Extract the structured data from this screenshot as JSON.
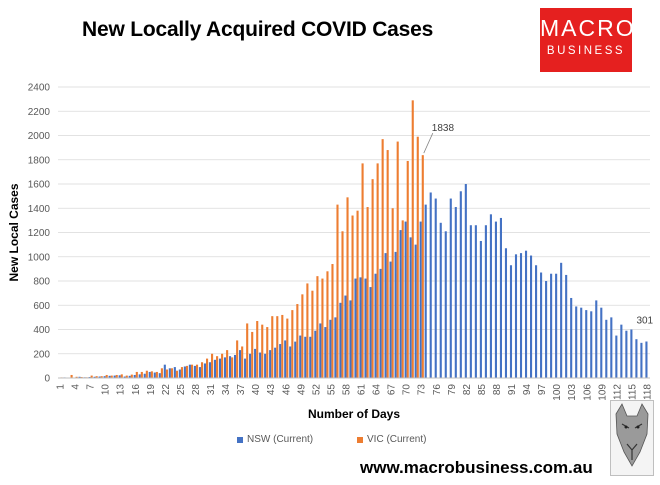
{
  "header": {
    "title": "New Locally Acquired COVID Cases",
    "logo_line1": "MACRO",
    "logo_line2": "BUSINESS"
  },
  "footer": {
    "url": "www.macrobusiness.com.au"
  },
  "colors": {
    "nsw": "#4472c4",
    "vic": "#ed7d31",
    "logo": "#e5201f"
  },
  "chart_data": {
    "type": "bar",
    "title": "New Locally Acquired COVID Cases",
    "xlabel": "Number of Days",
    "ylabel": "New Local Cases",
    "ylim": [
      0,
      2400
    ],
    "yticks": [
      0,
      200,
      400,
      600,
      800,
      1000,
      1200,
      1400,
      1600,
      1800,
      2000,
      2200,
      2400
    ],
    "xtick_labels": [
      "1",
      "4",
      "7",
      "10",
      "13",
      "16",
      "19",
      "22",
      "25",
      "28",
      "31",
      "34",
      "37",
      "40",
      "43",
      "46",
      "49",
      "52",
      "55",
      "58",
      "61",
      "64",
      "67",
      "70",
      "73",
      "76",
      "79",
      "82",
      "85",
      "88",
      "91",
      "94",
      "97",
      "100",
      "103",
      "106",
      "109",
      "112",
      "115",
      "118"
    ],
    "categories_start": 1,
    "categories_end": 118,
    "series": [
      {
        "name": "NSW (Current)",
        "values": [
          3,
          5,
          2,
          4,
          10,
          6,
          8,
          10,
          12,
          15,
          18,
          20,
          22,
          12,
          18,
          25,
          30,
          35,
          50,
          45,
          40,
          110,
          80,
          90,
          70,
          95,
          110,
          100,
          90,
          120,
          130,
          150,
          160,
          170,
          180,
          190,
          230,
          160,
          200,
          240,
          210,
          200,
          230,
          250,
          280,
          310,
          260,
          300,
          350,
          340,
          340,
          390,
          450,
          420,
          480,
          500,
          620,
          680,
          640,
          820,
          830,
          820,
          750,
          860,
          900,
          1030,
          960,
          1040,
          1220,
          1290,
          1160,
          1100,
          1290,
          1430,
          1530,
          1480,
          1280,
          1210,
          1480,
          1410,
          1540,
          1600,
          1260,
          1260,
          1130,
          1260,
          1350,
          1290,
          1320,
          1070,
          930,
          1020,
          1030,
          1050,
          1010,
          930,
          870,
          800,
          860,
          860,
          950,
          850,
          660,
          590,
          580,
          560,
          550,
          640,
          580,
          480,
          500,
          350,
          440,
          390,
          400,
          320,
          290,
          301
        ],
        "data_labels": [
          {
            "index": 117,
            "text": "301"
          }
        ]
      },
      {
        "name": "VIC (Current)",
        "values": [
          5,
          3,
          25,
          10,
          8,
          6,
          20,
          15,
          15,
          25,
          20,
          25,
          30,
          20,
          28,
          50,
          50,
          60,
          55,
          50,
          80,
          70,
          80,
          60,
          90,
          100,
          110,
          110,
          130,
          160,
          200,
          180,
          200,
          230,
          170,
          310,
          260,
          450,
          380,
          470,
          440,
          420,
          510,
          510,
          520,
          490,
          560,
          610,
          690,
          780,
          720,
          840,
          820,
          880,
          940,
          1430,
          1210,
          1490,
          1340,
          1380,
          1770,
          1410,
          1640,
          1770,
          1970,
          1880,
          1400,
          1950,
          1300,
          1790,
          2290,
          1990,
          1838
        ],
        "data_labels": [
          {
            "index": 72,
            "text": "1838"
          }
        ]
      }
    ],
    "legend": [
      "NSW (Current)",
      "VIC (Current)"
    ],
    "legend_position": "bottom"
  }
}
